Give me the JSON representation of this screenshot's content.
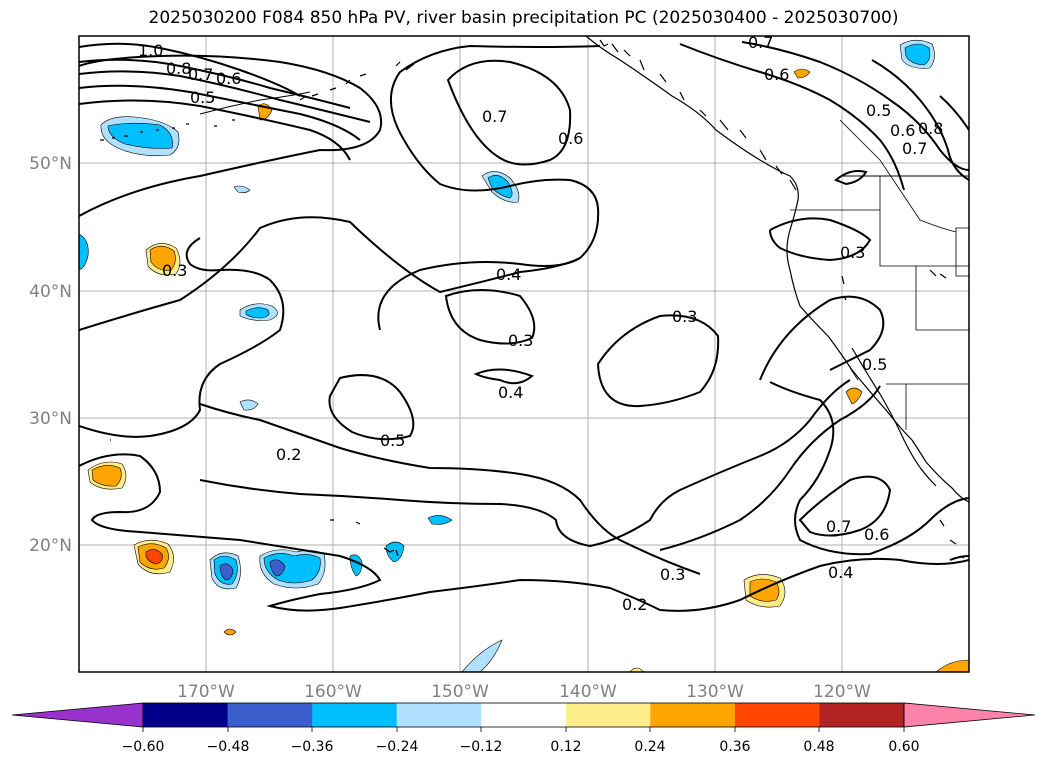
{
  "title": "2025030200 F084 850 hPa PV, river basin precipitation PC (2025030400 - 2025030700)",
  "latitude_labels": [
    "50°N",
    "40°N",
    "30°N",
    "20°N"
  ],
  "longitude_labels": [
    "170°W",
    "160°W",
    "150°W",
    "140°W",
    "130°W",
    "120°W"
  ],
  "contour_labels": [
    "1.0",
    "0.8",
    "0.7",
    "0.6",
    "0.5",
    "0.7",
    "0.6",
    "0.7",
    "0.6",
    "0.5",
    "0.6",
    "0.8",
    "0.7",
    "0.3",
    "0.4",
    "0.3",
    "0.3",
    "0.3",
    "0.4",
    "0.5",
    "0.5",
    "0.2",
    "0.7",
    "0.6",
    "0.3",
    "0.4",
    "0.2"
  ],
  "colorbar": {
    "tick_labels": [
      "−0.60",
      "−0.48",
      "−0.36",
      "−0.24",
      "−0.12",
      "0.12",
      "0.24",
      "0.36",
      "0.48",
      "0.60"
    ],
    "colors": [
      "#9932cc",
      "#00008b",
      "#3a5fcd",
      "#00bfff",
      "#b0e2ff",
      "#ffffff",
      "#ffec8b",
      "#ffa500",
      "#ff4500",
      "#b22222",
      "#ff82ab"
    ]
  }
}
